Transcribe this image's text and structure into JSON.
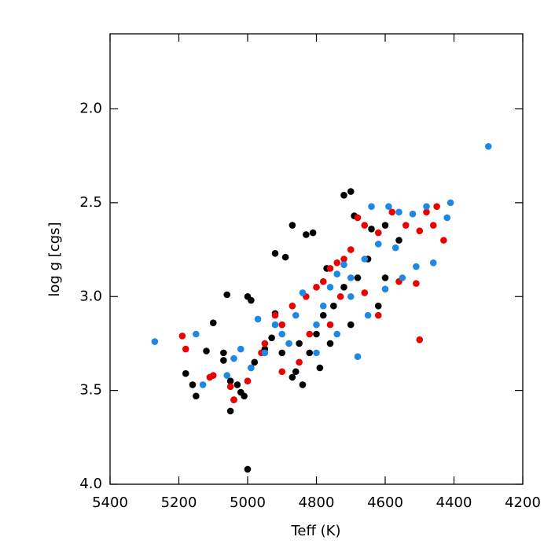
{
  "chart_data": {
    "type": "scatter",
    "x_label": "Teff (K)",
    "y_label": "log g [cgs]",
    "xlim": [
      5400,
      4200
    ],
    "xticks": [
      5400,
      5200,
      5000,
      4800,
      4600,
      4400,
      4200
    ],
    "ylim": [
      4.0,
      1.6
    ],
    "yticks": [
      {
        "value": 2.0,
        "label": "2.0"
      },
      {
        "value": 2.5,
        "label": "2.5"
      },
      {
        "value": 3.0,
        "label": "3.0"
      },
      {
        "value": 3.5,
        "label": "3.5"
      },
      {
        "value": 4.0,
        "label": "4.0"
      }
    ],
    "y_reversed": true,
    "series": [
      {
        "color": "#000000",
        "x": [
          5000,
          5050,
          5040,
          5010,
          5020,
          5150,
          5180,
          5160,
          5120,
          5100,
          5060,
          5000,
          4990,
          4920,
          4890,
          4870,
          4830,
          4810,
          4720,
          4700,
          4690,
          4600,
          4640,
          4770,
          4860,
          4840,
          4870,
          4950,
          4980,
          5050,
          5070,
          4900,
          4800,
          4780,
          4750,
          4720,
          4680,
          4650,
          4560,
          4600,
          4620,
          4700,
          4820,
          4850,
          4760,
          4790,
          4930,
          4920,
          5030,
          5070
        ],
        "values": [
          3.92,
          3.61,
          3.55,
          3.53,
          3.51,
          3.53,
          3.41,
          3.47,
          3.29,
          3.14,
          2.99,
          3.0,
          3.02,
          2.77,
          2.79,
          2.62,
          2.67,
          2.66,
          2.46,
          2.44,
          2.57,
          2.62,
          2.64,
          2.85,
          3.4,
          3.47,
          3.43,
          3.28,
          3.35,
          3.45,
          3.3,
          3.3,
          3.2,
          3.1,
          3.05,
          2.95,
          2.9,
          2.8,
          2.7,
          2.9,
          3.05,
          3.15,
          3.3,
          3.25,
          3.25,
          3.38,
          3.22,
          3.09,
          3.47,
          3.34
        ]
      },
      {
        "color": "#ee0000",
        "x": [
          5190,
          5180,
          5100,
          5050,
          5000,
          4990,
          4950,
          4920,
          4900,
          4870,
          4830,
          4800,
          4780,
          4760,
          4740,
          4720,
          4700,
          4680,
          4660,
          4620,
          4580,
          4540,
          4480,
          4450,
          4460,
          4430,
          4500,
          4500,
          4510,
          4560,
          4620,
          4660,
          4820,
          4850,
          4900,
          4960,
          5040,
          5110,
          4730,
          4760
        ],
        "values": [
          3.21,
          3.28,
          3.42,
          3.48,
          3.45,
          3.38,
          3.25,
          3.1,
          3.15,
          3.05,
          3.0,
          2.95,
          2.92,
          2.85,
          2.82,
          2.8,
          2.75,
          2.58,
          2.62,
          2.66,
          2.55,
          2.62,
          2.55,
          2.52,
          2.62,
          2.7,
          2.65,
          3.23,
          2.93,
          2.92,
          3.1,
          2.98,
          3.2,
          3.35,
          3.4,
          3.3,
          3.55,
          3.43,
          3.0,
          3.15
        ]
      },
      {
        "color": "#1e88e5",
        "x": [
          5270,
          5150,
          5130,
          5060,
          5040,
          4990,
          4970,
          4950,
          4900,
          4880,
          4860,
          4840,
          4800,
          4780,
          4760,
          4740,
          4720,
          4700,
          4660,
          4640,
          4590,
          4560,
          4520,
          4480,
          4410,
          4420,
          4460,
          4510,
          4550,
          4600,
          4650,
          4680,
          4700,
          4740,
          4800,
          4300,
          4570,
          4620,
          5020,
          4920
        ],
        "values": [
          3.24,
          3.2,
          3.47,
          3.42,
          3.33,
          3.38,
          3.12,
          3.3,
          3.2,
          3.25,
          3.1,
          2.98,
          3.15,
          3.05,
          2.95,
          2.88,
          2.83,
          2.9,
          2.8,
          2.52,
          2.52,
          2.55,
          2.56,
          2.52,
          2.5,
          2.58,
          2.82,
          2.84,
          2.9,
          2.96,
          3.1,
          3.32,
          3.0,
          3.2,
          3.3,
          2.2,
          2.74,
          2.72,
          3.28,
          3.15
        ]
      }
    ]
  }
}
